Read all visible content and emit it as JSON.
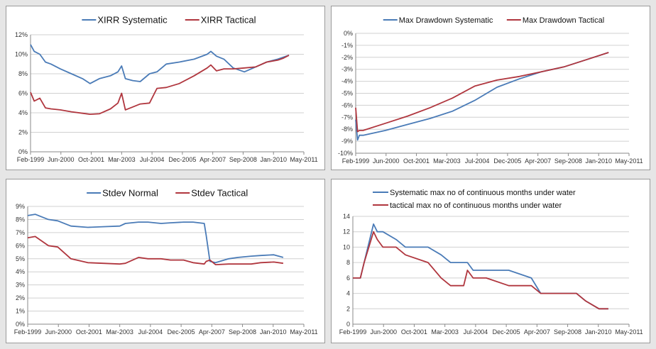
{
  "colors": {
    "blue": "#4a7bb7",
    "red": "#b0363e",
    "grid": "#d0d0d0",
    "axis": "#8a8a8a"
  },
  "x_tick_labels": [
    "Feb-1999",
    "Jun-2000",
    "Oct-2001",
    "Mar-2003",
    "Jul-2004",
    "Dec-2005",
    "Apr-2007",
    "Sep-2008",
    "Jan-2010",
    "May-2011"
  ],
  "chart_data": [
    {
      "type": "line",
      "legend_position": "top",
      "grid": true,
      "ylim": [
        0,
        12
      ],
      "y_ticks": [
        "0%",
        "2%",
        "4%",
        "6%",
        "8%",
        "10%",
        "12%"
      ],
      "x": [
        "1999-02",
        "1999-04",
        "1999-07",
        "1999-10",
        "2000-01",
        "2000-06",
        "2000-12",
        "2001-06",
        "2001-10",
        "2002-03",
        "2002-09",
        "2003-01",
        "2003-03",
        "2003-05",
        "2003-09",
        "2004-01",
        "2004-06",
        "2004-10",
        "2005-03",
        "2005-10",
        "2006-06",
        "2007-01",
        "2007-03",
        "2007-06",
        "2007-10",
        "2008-03",
        "2008-09",
        "2009-03",
        "2009-09",
        "2010-03",
        "2010-06",
        "2010-09"
      ],
      "series": [
        {
          "name": "XIRR Systematic",
          "color": "#4a7bb7",
          "values": [
            11.0,
            10.3,
            10.0,
            9.2,
            9.0,
            8.5,
            8.0,
            7.5,
            7.0,
            7.5,
            7.8,
            8.2,
            8.8,
            7.5,
            7.3,
            7.2,
            8.0,
            8.2,
            9.0,
            9.2,
            9.5,
            10.0,
            10.3,
            9.8,
            9.5,
            8.6,
            8.2,
            8.7,
            9.2,
            9.5,
            9.7,
            9.9
          ]
        },
        {
          "name": "XIRR Tactical",
          "color": "#b0363e",
          "values": [
            6.1,
            5.2,
            5.5,
            4.5,
            4.4,
            4.3,
            4.1,
            3.95,
            3.85,
            3.9,
            4.4,
            5.0,
            6.0,
            4.3,
            4.6,
            4.9,
            5.0,
            6.5,
            6.6,
            7.0,
            7.8,
            8.6,
            8.9,
            8.3,
            8.5,
            8.5,
            8.6,
            8.7,
            9.2,
            9.4,
            9.6,
            9.9
          ]
        }
      ]
    },
    {
      "type": "line",
      "legend_position": "top",
      "grid": true,
      "ylim": [
        -10,
        0
      ],
      "y_ticks": [
        "-10%",
        "-9%",
        "-8%",
        "-7%",
        "-6%",
        "-5%",
        "-4%",
        "-3%",
        "-2%",
        "-1%",
        "0%"
      ],
      "x": [
        "1999-02",
        "1999-03",
        "1999-04",
        "1999-06",
        "2000-06",
        "2001-06",
        "2002-06",
        "2003-06",
        "2004-06",
        "2005-06",
        "2006-06",
        "2007-06",
        "2008-06",
        "2009-06",
        "2010-06"
      ],
      "series": [
        {
          "name": "Max Drawdown Systematic",
          "color": "#4a7bb7",
          "values": [
            -7.2,
            -8.9,
            -8.5,
            -8.5,
            -8.1,
            -7.6,
            -7.1,
            -6.5,
            -5.6,
            -4.5,
            -3.8,
            -3.2,
            -2.8,
            -2.2,
            -1.6
          ]
        },
        {
          "name": "Max Drawdown Tactical",
          "color": "#b0363e",
          "values": [
            -6.2,
            -8.2,
            -8.1,
            -8.1,
            -7.5,
            -6.9,
            -6.2,
            -5.4,
            -4.4,
            -3.9,
            -3.6,
            -3.2,
            -2.8,
            -2.2,
            -1.6
          ]
        }
      ]
    },
    {
      "type": "line",
      "legend_position": "top",
      "grid": true,
      "ylim": [
        0,
        9
      ],
      "y_ticks": [
        "0%",
        "1%",
        "2%",
        "3%",
        "4%",
        "5%",
        "6%",
        "7%",
        "8%",
        "9%"
      ],
      "x": [
        "1999-02",
        "1999-06",
        "2000-01",
        "2000-06",
        "2001-01",
        "2001-10",
        "2002-06",
        "2003-03",
        "2003-06",
        "2004-01",
        "2004-06",
        "2005-01",
        "2005-06",
        "2006-01",
        "2006-06",
        "2006-12",
        "2007-01",
        "2007-03",
        "2007-06",
        "2008-01",
        "2008-06",
        "2009-01",
        "2009-06",
        "2010-01",
        "2010-06"
      ],
      "series": [
        {
          "name": "Stdev Normal",
          "color": "#4a7bb7",
          "values": [
            8.3,
            8.4,
            8.0,
            7.9,
            7.5,
            7.4,
            7.45,
            7.5,
            7.7,
            7.8,
            7.8,
            7.7,
            7.75,
            7.8,
            7.8,
            7.7,
            6.8,
            4.8,
            4.7,
            5.0,
            5.1,
            5.2,
            5.25,
            5.3,
            5.1
          ]
        },
        {
          "name": "Stdev Tactical",
          "color": "#b0363e",
          "values": [
            6.6,
            6.7,
            6.0,
            5.9,
            5.0,
            4.7,
            4.65,
            4.6,
            4.65,
            5.1,
            5.0,
            5.0,
            4.9,
            4.9,
            4.7,
            4.6,
            4.8,
            4.9,
            4.55,
            4.6,
            4.6,
            4.6,
            4.7,
            4.75,
            4.65
          ]
        }
      ]
    },
    {
      "type": "line",
      "legend_position": "top",
      "grid": true,
      "ylim": [
        0,
        14
      ],
      "y_ticks": [
        "0",
        "2",
        "4",
        "6",
        "8",
        "10",
        "12",
        "14"
      ],
      "x": [
        "1999-02",
        "1999-06",
        "1999-08",
        "2000-01",
        "2000-03",
        "2000-06",
        "2001-01",
        "2001-06",
        "2002-06",
        "2003-01",
        "2003-06",
        "2004-01",
        "2004-03",
        "2004-06",
        "2005-01",
        "2006-01",
        "2007-01",
        "2007-06",
        "2008-01",
        "2009-01",
        "2009-06",
        "2010-01",
        "2010-06"
      ],
      "series": [
        {
          "name": "Systematic max no of continuous months under water",
          "color": "#4a7bb7",
          "values": [
            6,
            6,
            8,
            13,
            12,
            12,
            11,
            10,
            10,
            9,
            8,
            8,
            8,
            7,
            7,
            7,
            6,
            4,
            4,
            4,
            3,
            2,
            2
          ]
        },
        {
          "name": "tactical max no of continuous months under water",
          "color": "#b0363e",
          "values": [
            6,
            6,
            8,
            12,
            11,
            10,
            10,
            9,
            8,
            6,
            5,
            5,
            7,
            6,
            6,
            5,
            5,
            4,
            4,
            4,
            3,
            2,
            2
          ]
        }
      ]
    }
  ]
}
